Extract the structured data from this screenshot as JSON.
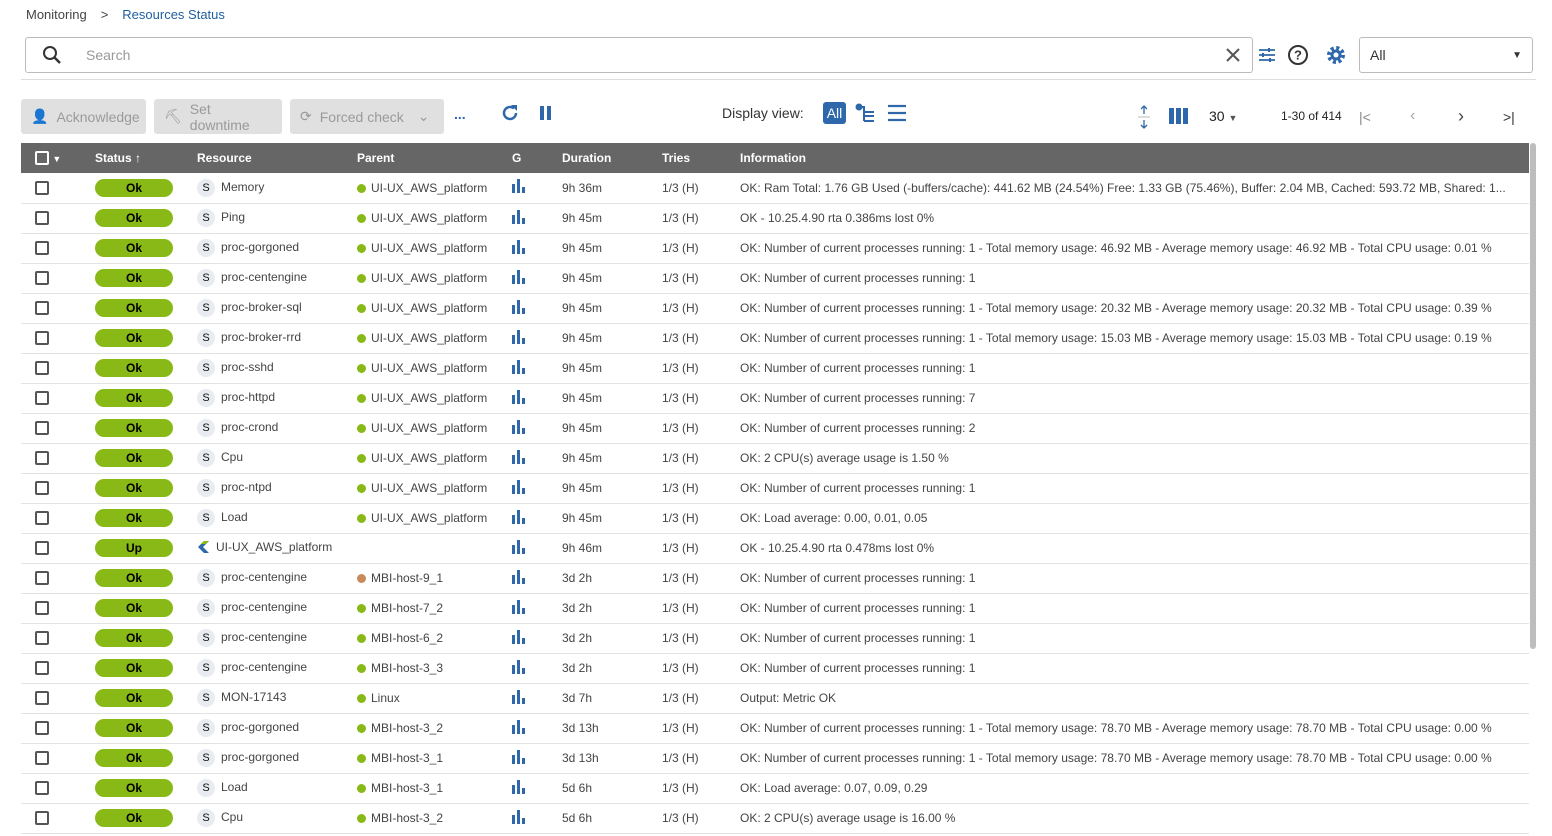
{
  "breadcrumb": [
    "Monitoring",
    "Resources Status"
  ],
  "search": {
    "placeholder": "Search",
    "value": ""
  },
  "filter_select": {
    "value": "All"
  },
  "toolbar": {
    "acknowledge": "Acknowledge",
    "set_downtime": "Set downtime",
    "forced_check": "Forced check",
    "more": "...",
    "display_view_label": "Display view:",
    "display_all": "All"
  },
  "pagination": {
    "per_page": "30",
    "range": "1-30 of 414"
  },
  "columns": [
    "Status",
    "Resource",
    "Parent",
    "G",
    "Duration",
    "Tries",
    "Information"
  ],
  "colors": {
    "ok": "#88b917",
    "header": "#666666",
    "accent": "#2e68aa",
    "parent_ok": "#88b917",
    "parent_pending": "#c88a5a"
  },
  "rows": [
    [
      "Ok",
      "S",
      "Memory",
      "UI-UX_AWS_platform",
      "#88b917",
      "9h 36m",
      "1/3 (H)",
      "OK: Ram Total: 1.76 GB Used (-buffers/cache): 441.62 MB (24.54%) Free: 1.33 GB (75.46%), Buffer: 2.04 MB, Cached: 593.72 MB, Shared: 1..."
    ],
    [
      "Ok",
      "S",
      "Ping",
      "UI-UX_AWS_platform",
      "#88b917",
      "9h 45m",
      "1/3 (H)",
      "OK - 10.25.4.90 rta 0.386ms lost 0%"
    ],
    [
      "Ok",
      "S",
      "proc-gorgoned",
      "UI-UX_AWS_platform",
      "#88b917",
      "9h 45m",
      "1/3 (H)",
      "OK: Number of current processes running: 1 - Total memory usage: 46.92 MB - Average memory usage: 46.92 MB - Total CPU usage: 0.01 %"
    ],
    [
      "Ok",
      "S",
      "proc-centengine",
      "UI-UX_AWS_platform",
      "#88b917",
      "9h 45m",
      "1/3 (H)",
      "OK: Number of current processes running: 1"
    ],
    [
      "Ok",
      "S",
      "proc-broker-sql",
      "UI-UX_AWS_platform",
      "#88b917",
      "9h 45m",
      "1/3 (H)",
      "OK: Number of current processes running: 1 - Total memory usage: 20.32 MB - Average memory usage: 20.32 MB - Total CPU usage: 0.39 %"
    ],
    [
      "Ok",
      "S",
      "proc-broker-rrd",
      "UI-UX_AWS_platform",
      "#88b917",
      "9h 45m",
      "1/3 (H)",
      "OK: Number of current processes running: 1 - Total memory usage: 15.03 MB - Average memory usage: 15.03 MB - Total CPU usage: 0.19 %"
    ],
    [
      "Ok",
      "S",
      "proc-sshd",
      "UI-UX_AWS_platform",
      "#88b917",
      "9h 45m",
      "1/3 (H)",
      "OK: Number of current processes running: 1"
    ],
    [
      "Ok",
      "S",
      "proc-httpd",
      "UI-UX_AWS_platform",
      "#88b917",
      "9h 45m",
      "1/3 (H)",
      "OK: Number of current processes running: 7"
    ],
    [
      "Ok",
      "S",
      "proc-crond",
      "UI-UX_AWS_platform",
      "#88b917",
      "9h 45m",
      "1/3 (H)",
      "OK: Number of current processes running: 2"
    ],
    [
      "Ok",
      "S",
      "Cpu",
      "UI-UX_AWS_platform",
      "#88b917",
      "9h 45m",
      "1/3 (H)",
      "OK: 2 CPU(s) average usage is 1.50 %"
    ],
    [
      "Ok",
      "S",
      "proc-ntpd",
      "UI-UX_AWS_platform",
      "#88b917",
      "9h 45m",
      "1/3 (H)",
      "OK: Number of current processes running: 1"
    ],
    [
      "Ok",
      "S",
      "Load",
      "UI-UX_AWS_platform",
      "#88b917",
      "9h 45m",
      "1/3 (H)",
      "OK: Load average: 0.00, 0.01, 0.05"
    ],
    [
      "Up",
      "H",
      "UI-UX_AWS_platform",
      "",
      "",
      "9h 46m",
      "1/3 (H)",
      "OK - 10.25.4.90 rta 0.478ms lost 0%"
    ],
    [
      "Ok",
      "S",
      "proc-centengine",
      "MBI-host-9_1",
      "#c88a5a",
      "3d 2h",
      "1/3 (H)",
      "OK: Number of current processes running: 1"
    ],
    [
      "Ok",
      "S",
      "proc-centengine",
      "MBI-host-7_2",
      "#88b917",
      "3d 2h",
      "1/3 (H)",
      "OK: Number of current processes running: 1"
    ],
    [
      "Ok",
      "S",
      "proc-centengine",
      "MBI-host-6_2",
      "#88b917",
      "3d 2h",
      "1/3 (H)",
      "OK: Number of current processes running: 1"
    ],
    [
      "Ok",
      "S",
      "proc-centengine",
      "MBI-host-3_3",
      "#88b917",
      "3d 2h",
      "1/3 (H)",
      "OK: Number of current processes running: 1"
    ],
    [
      "Ok",
      "S",
      "MON-17143",
      "Linux",
      "#88b917",
      "3d 7h",
      "1/3 (H)",
      "Output: Metric OK"
    ],
    [
      "Ok",
      "S",
      "proc-gorgoned",
      "MBI-host-3_2",
      "#88b917",
      "3d 13h",
      "1/3 (H)",
      "OK: Number of current processes running: 1 - Total memory usage: 78.70 MB - Average memory usage: 78.70 MB - Total CPU usage: 0.00 %"
    ],
    [
      "Ok",
      "S",
      "proc-gorgoned",
      "MBI-host-3_1",
      "#88b917",
      "3d 13h",
      "1/3 (H)",
      "OK: Number of current processes running: 1 - Total memory usage: 78.70 MB - Average memory usage: 78.70 MB - Total CPU usage: 0.00 %"
    ],
    [
      "Ok",
      "S",
      "Load",
      "MBI-host-3_1",
      "#88b917",
      "5d 6h",
      "1/3 (H)",
      "OK: Load average: 0.07, 0.09, 0.29"
    ],
    [
      "Ok",
      "S",
      "Cpu",
      "MBI-host-3_2",
      "#88b917",
      "5d 6h",
      "1/3 (H)",
      "OK: 2 CPU(s) average usage is 16.00 %"
    ]
  ]
}
